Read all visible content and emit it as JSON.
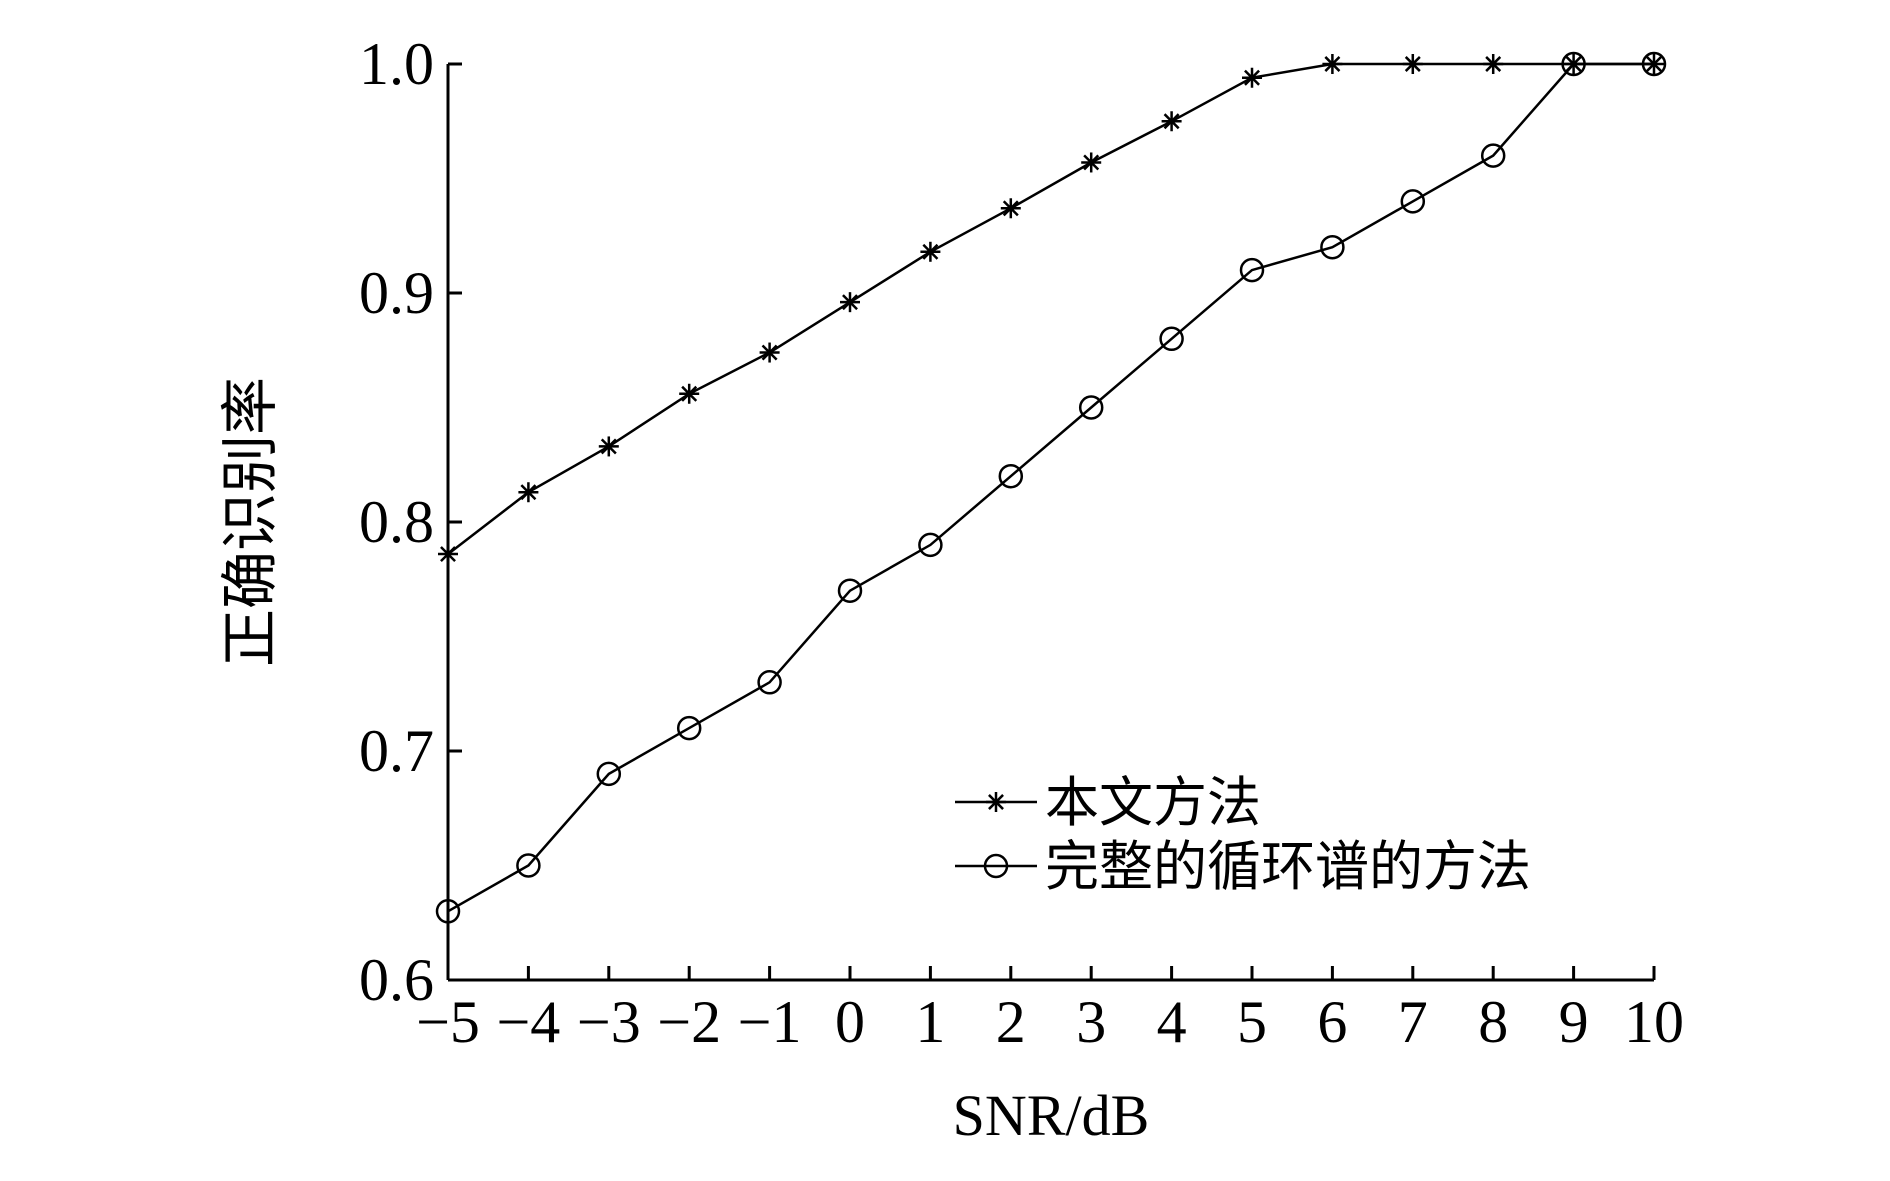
{
  "chart_data": {
    "type": "line",
    "xlabel": "SNR/dB",
    "ylabel": "正确识别率",
    "xlim": [
      -5,
      10
    ],
    "ylim": [
      0.6,
      1.0
    ],
    "x": [
      -5,
      -4,
      -3,
      -2,
      -1,
      0,
      1,
      2,
      3,
      4,
      5,
      6,
      7,
      8,
      9,
      10
    ],
    "x_tick_labels": [
      "−5",
      "−4",
      "−3",
      "−2",
      "−1",
      "0",
      "1",
      "2",
      "3",
      "4",
      "5",
      "6",
      "7",
      "8",
      "9",
      "10"
    ],
    "y_ticks": [
      0.6,
      0.7,
      0.8,
      0.9,
      1.0
    ],
    "y_tick_labels": [
      "0.6",
      "0.7",
      "0.8",
      "0.9",
      "1.0"
    ],
    "grid": false,
    "legend_position": "bottom-right",
    "series": [
      {
        "name": "本文方法",
        "marker": "star",
        "values": [
          0.786,
          0.813,
          0.833,
          0.856,
          0.874,
          0.896,
          0.918,
          0.937,
          0.957,
          0.975,
          0.994,
          1.0,
          1.0,
          1.0,
          1.0,
          1.0
        ]
      },
      {
        "name": "完整的循环谱的方法",
        "marker": "circle",
        "values": [
          0.63,
          0.65,
          0.69,
          0.71,
          0.73,
          0.77,
          0.79,
          0.82,
          0.85,
          0.88,
          0.91,
          0.92,
          0.94,
          0.96,
          1.0,
          1.0
        ]
      }
    ]
  }
}
